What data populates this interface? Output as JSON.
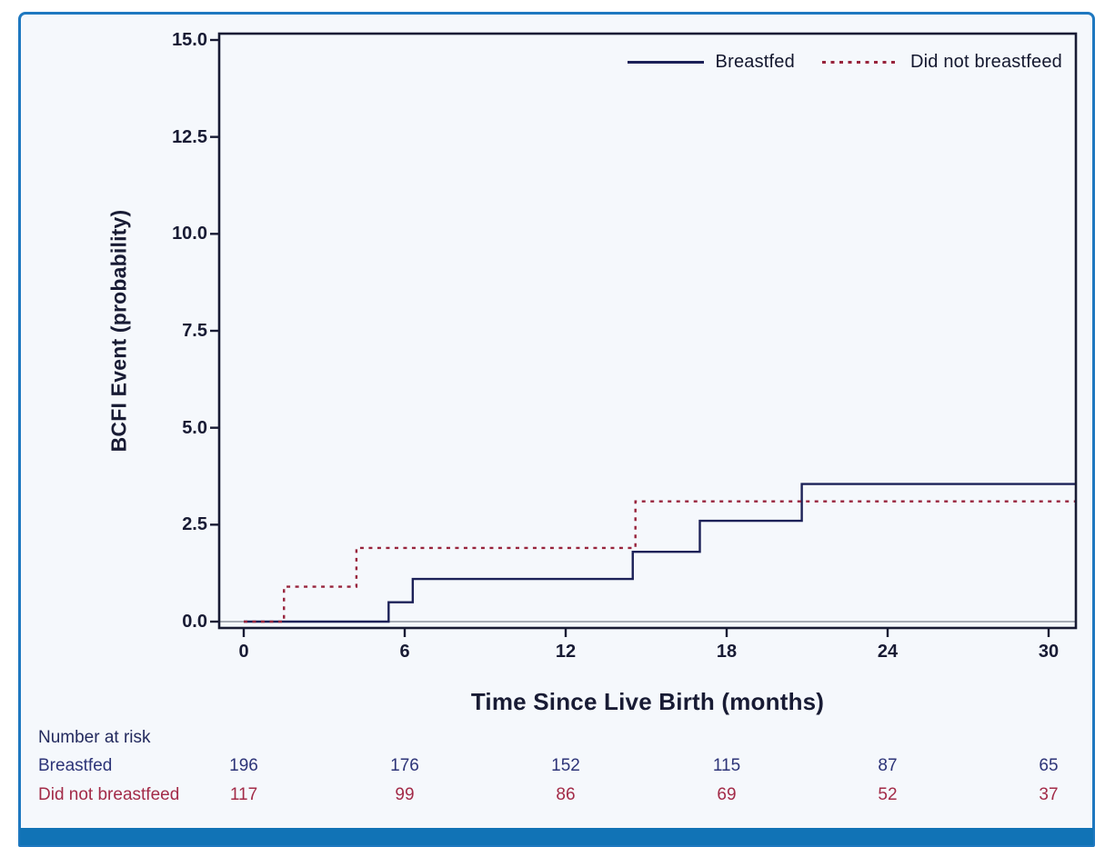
{
  "figure": {
    "border_color": "#1e78c0",
    "bottom_bar_color": "#1173b6",
    "panel_background": "#f5f8fc"
  },
  "risk_table": {
    "header": "Number at risk",
    "rows": [
      {
        "label": "Breastfed",
        "color": "#2d3478",
        "values": [
          "196",
          "176",
          "152",
          "115",
          "87",
          "65"
        ]
      },
      {
        "label": "Did not breastfeed",
        "color": "#a32b48",
        "values": [
          "117",
          "99",
          "86",
          "69",
          "52",
          "37"
        ]
      }
    ]
  },
  "chart_data": {
    "type": "line",
    "subtype": "kaplan-meier-step",
    "title": "",
    "xlabel": "Time Since Live Birth (months)",
    "ylabel": "BCFI Event (probability)",
    "xticks": [
      0,
      6,
      12,
      18,
      24,
      30
    ],
    "xtick_labels": [
      "0",
      "6",
      "12",
      "18",
      "24",
      "30"
    ],
    "yticks": [
      0,
      2.5,
      5,
      7.5,
      10,
      12.5,
      15
    ],
    "ytick_labels": [
      "0.0",
      "2.5",
      "5.0",
      "7.5",
      "10.0",
      "12.5",
      "15.0"
    ],
    "xlim": [
      -0.9,
      31.0
    ],
    "ylim": [
      -0.2,
      15.2
    ],
    "x_end": 31.0,
    "grid": false,
    "legend_position": "top-right-inside",
    "frame_color": "#181b34",
    "baseline": {
      "y": 0,
      "color": "#9aa0ab"
    },
    "series": [
      {
        "name": "Breastfed",
        "color": "#1c2158",
        "style": "solid",
        "steps_note": "pairs of [time_months, cumulative_probability]; value holds until next step",
        "steps": [
          [
            0,
            0
          ],
          [
            5.4,
            0.5
          ],
          [
            6.3,
            1.1
          ],
          [
            14.5,
            1.8
          ],
          [
            17.0,
            2.6
          ],
          [
            20.8,
            3.55
          ]
        ]
      },
      {
        "name": "Did not breastfeed",
        "color": "#98243c",
        "style": "dotted",
        "steps_note": "pairs of [time_months, cumulative_probability]; value holds until next step",
        "steps": [
          [
            0,
            0
          ],
          [
            1.5,
            0.9
          ],
          [
            4.2,
            1.9
          ],
          [
            14.6,
            3.1
          ]
        ]
      }
    ]
  }
}
